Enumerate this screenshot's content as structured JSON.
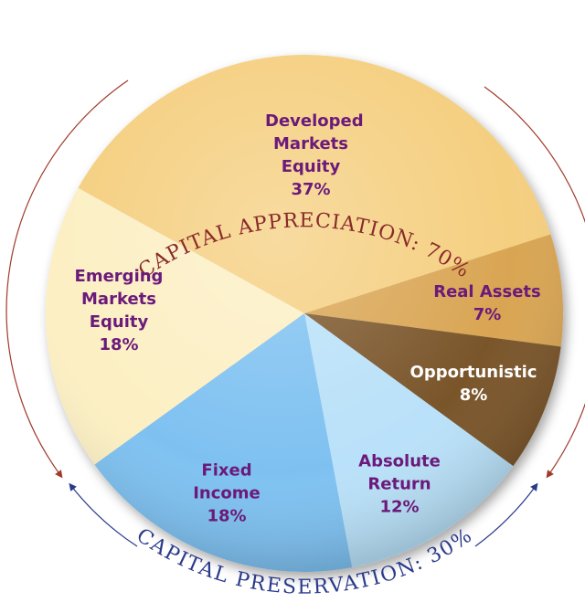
{
  "chart_data": {
    "type": "pie",
    "categories": [
      "Developed Markets Equity",
      "Real Assets",
      "Opportunistic",
      "Absolute Return",
      "Fixed Income",
      "Emerging Markets Equity"
    ],
    "values": [
      37,
      7,
      8,
      12,
      18,
      18
    ],
    "value_labels": [
      "37%",
      "7%",
      "8%",
      "12%",
      "18%",
      "18%"
    ],
    "colors": [
      "#f5cf80",
      "#d9a552",
      "#7a5529",
      "#b9e1f9",
      "#7ec1f1",
      "#fcefc3"
    ],
    "annotations": [
      "CAPITAL APPRECIATION: 70%",
      "CAPITAL PRESERVATION: 30%"
    ]
  }
}
